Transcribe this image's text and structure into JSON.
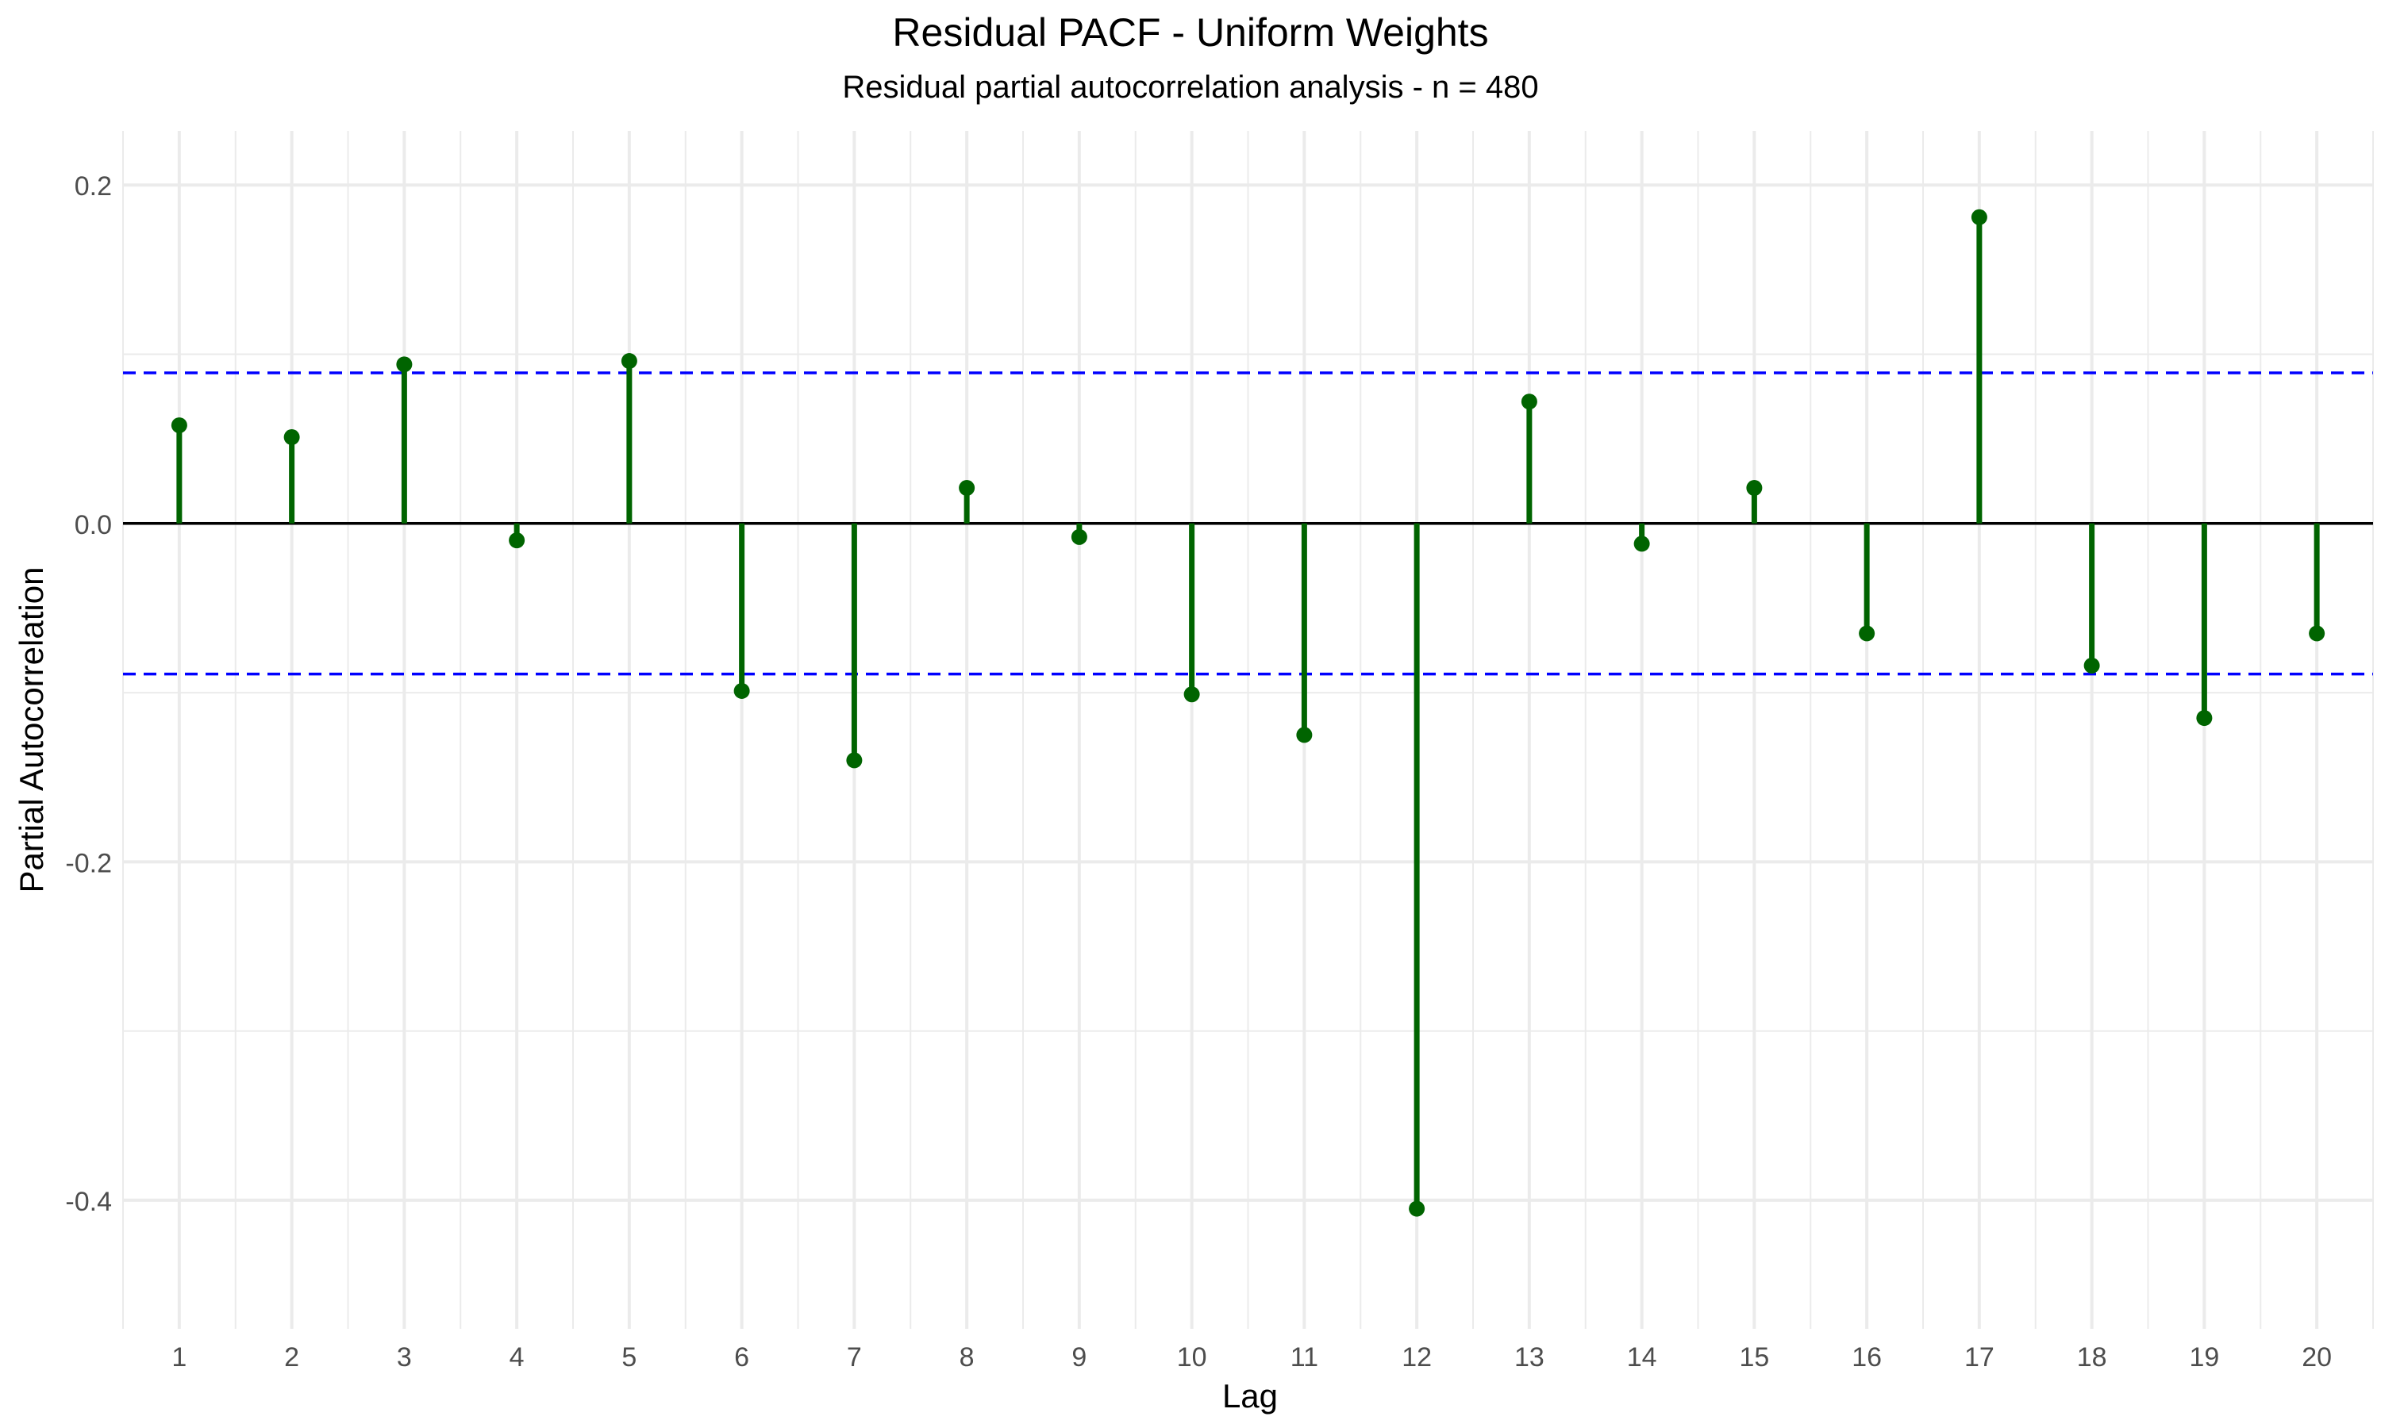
{
  "chart_data": {
    "type": "stem",
    "title": "Residual PACF - Uniform Weights",
    "subtitle": "Residual partial autocorrelation analysis - n = 480",
    "xlabel": "Lag",
    "ylabel": "Partial Autocorrelation",
    "x": [
      1,
      2,
      3,
      4,
      5,
      6,
      7,
      8,
      9,
      10,
      11,
      12,
      13,
      14,
      15,
      16,
      17,
      18,
      19,
      20
    ],
    "values": [
      0.058,
      0.051,
      0.094,
      -0.01,
      0.096,
      -0.099,
      -0.14,
      0.021,
      -0.008,
      -0.101,
      -0.125,
      -0.405,
      0.072,
      -0.012,
      0.021,
      -0.065,
      0.181,
      -0.084,
      -0.115,
      -0.065
    ],
    "x_ticks": [
      "1",
      "2",
      "3",
      "4",
      "5",
      "6",
      "7",
      "8",
      "9",
      "10",
      "11",
      "12",
      "13",
      "14",
      "15",
      "16",
      "17",
      "18",
      "19",
      "20"
    ],
    "y_ticks": [
      -0.4,
      -0.2,
      0.0,
      0.2
    ],
    "y_tick_labels": [
      "-0.4",
      "-0.2",
      "0.0",
      "0.2"
    ],
    "xlim": [
      0.5,
      20.5
    ],
    "ylim": [
      -0.476,
      0.232
    ],
    "confidence_band": [
      -0.089,
      0.089
    ],
    "grid": true,
    "legend": "none",
    "colors": {
      "stem": "#006400",
      "confidence_line": "#0000ff",
      "zero_line": "#000000",
      "grid": "#ebebeb",
      "tick_text": "#4d4d4d",
      "axis_title": "#000000"
    }
  }
}
